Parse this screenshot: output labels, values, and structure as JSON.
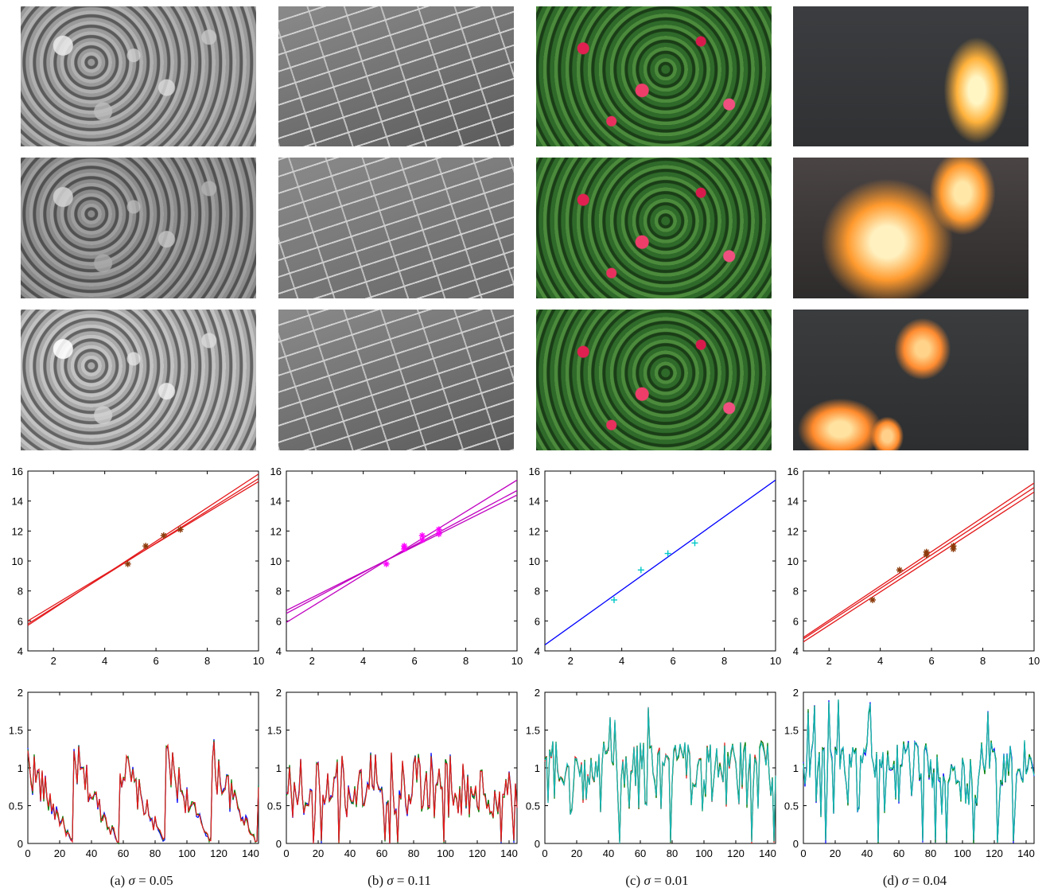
{
  "captions": [
    {
      "prefix": "(a) ",
      "sigma_symbol": "σ",
      "eq": " = 0.05"
    },
    {
      "prefix": "(b) ",
      "sigma_symbol": "σ",
      "eq": " = 0.11"
    },
    {
      "prefix": "(c) ",
      "sigma_symbol": "σ",
      "eq": " = 0.01"
    },
    {
      "prefix": "(d) ",
      "sigma_symbol": "σ",
      "eq": " = 0.04"
    }
  ],
  "colors": {
    "red": "#e31a1c",
    "magenta": "#ff00ff",
    "purple": "#c000c0",
    "blue": "#0000ff",
    "cyan": "#00c8c8",
    "brown": "#8b3a0a",
    "green": "#008000",
    "teal": "#18b4b4"
  },
  "chart_data": [
    {
      "type": "scatter",
      "panel": "a",
      "xlim": [
        1,
        10
      ],
      "ylim": [
        4,
        16
      ],
      "xticks": [
        2,
        4,
        6,
        8,
        10
      ],
      "yticks": [
        4,
        6,
        8,
        10,
        12,
        14,
        16
      ],
      "lines": [
        {
          "x": [
            1,
            10
          ],
          "y": [
            5.7,
            15.8
          ]
        },
        {
          "x": [
            1,
            10
          ],
          "y": [
            5.8,
            15.5
          ]
        },
        {
          "x": [
            1,
            10
          ],
          "y": [
            6.0,
            15.3
          ]
        }
      ],
      "line_color": "#e31a1c",
      "points": {
        "marker": "*",
        "color": "#8b3a0a",
        "x": [
          4.9,
          5.6,
          6.3,
          6.95
        ],
        "y": [
          9.8,
          11.0,
          11.7,
          12.1
        ]
      }
    },
    {
      "type": "scatter",
      "panel": "b",
      "xlim": [
        1,
        10
      ],
      "ylim": [
        4,
        16
      ],
      "xticks": [
        2,
        4,
        6,
        8,
        10
      ],
      "yticks": [
        4,
        6,
        8,
        10,
        12,
        14,
        16
      ],
      "lines": [
        {
          "x": [
            1,
            10
          ],
          "y": [
            5.9,
            15.4
          ]
        },
        {
          "x": [
            1,
            10
          ],
          "y": [
            6.5,
            14.7
          ]
        },
        {
          "x": [
            1,
            10
          ],
          "y": [
            6.7,
            14.4
          ]
        }
      ],
      "line_color": "#c000c0",
      "points": {
        "marker": "*",
        "color": "#ff00ff",
        "x": [
          4.9,
          5.6,
          5.6,
          6.3,
          6.3,
          6.95,
          6.95
        ],
        "y": [
          9.8,
          10.8,
          11.0,
          11.4,
          11.7,
          11.8,
          12.1
        ]
      }
    },
    {
      "type": "scatter",
      "panel": "c",
      "xlim": [
        1,
        10
      ],
      "ylim": [
        4,
        16
      ],
      "xticks": [
        2,
        4,
        6,
        8,
        10
      ],
      "yticks": [
        4,
        6,
        8,
        10,
        12,
        14,
        16
      ],
      "lines": [
        {
          "x": [
            1,
            10
          ],
          "y": [
            4.4,
            15.4
          ]
        }
      ],
      "line_color": "#0000ff",
      "points": {
        "marker": "+",
        "color": "#00c8c8",
        "x": [
          3.7,
          4.75,
          5.8,
          6.85
        ],
        "y": [
          7.4,
          9.4,
          10.5,
          11.2
        ]
      }
    },
    {
      "type": "scatter",
      "panel": "d",
      "xlim": [
        1,
        10
      ],
      "ylim": [
        4,
        16
      ],
      "xticks": [
        2,
        4,
        6,
        8,
        10
      ],
      "yticks": [
        4,
        6,
        8,
        10,
        12,
        14,
        16
      ],
      "lines": [
        {
          "x": [
            1,
            10
          ],
          "y": [
            4.6,
            14.6
          ]
        },
        {
          "x": [
            1,
            10
          ],
          "y": [
            4.8,
            14.9
          ]
        },
        {
          "x": [
            1,
            10
          ],
          "y": [
            4.9,
            15.2
          ]
        }
      ],
      "line_color": "#e31a1c",
      "points": {
        "marker": "*",
        "color": "#8b3a0a",
        "x": [
          3.7,
          4.75,
          5.8,
          5.8,
          6.85,
          6.85
        ],
        "y": [
          7.4,
          9.4,
          10.4,
          10.6,
          10.8,
          11.0
        ]
      }
    },
    {
      "type": "line",
      "panel": "a",
      "xlim": [
        0,
        145
      ],
      "ylim": [
        0,
        2
      ],
      "xticks": [
        0,
        20,
        40,
        60,
        80,
        100,
        120,
        140
      ],
      "yticks": [
        0,
        0.5,
        1,
        1.5,
        2
      ],
      "ytick_labels": [
        "0",
        "0.5",
        "1",
        "1.5",
        "2"
      ],
      "colors": [
        "#0000ff",
        "#008000",
        "#e31a1c"
      ],
      "profile": "sawtooth"
    },
    {
      "type": "line",
      "panel": "b",
      "xlim": [
        0,
        145
      ],
      "ylim": [
        0,
        2
      ],
      "xticks": [
        0,
        20,
        40,
        60,
        80,
        100,
        120,
        140
      ],
      "yticks": [
        0,
        0.5,
        1,
        1.5,
        2
      ],
      "ytick_labels": [
        "0",
        "0.5",
        "1",
        "1.5",
        "2"
      ],
      "colors": [
        "#0000ff",
        "#008000",
        "#e31a1c"
      ],
      "profile": "spiky-low"
    },
    {
      "type": "line",
      "panel": "c",
      "xlim": [
        0,
        145
      ],
      "ylim": [
        0,
        2
      ],
      "xticks": [
        0,
        20,
        40,
        60,
        80,
        100,
        120,
        140
      ],
      "yticks": [
        0,
        0.5,
        1,
        1.5,
        2
      ],
      "ytick_labels": [
        "0",
        "0.5",
        "1",
        "1.5",
        "2"
      ],
      "colors": [
        "#e31a1c",
        "#008000",
        "#18b4b4"
      ],
      "profile": "noisy-one"
    },
    {
      "type": "line",
      "panel": "d",
      "xlim": [
        0,
        145
      ],
      "ylim": [
        0,
        2
      ],
      "xticks": [
        0,
        20,
        40,
        60,
        80,
        100,
        120,
        140
      ],
      "yticks": [
        0,
        0.5,
        1,
        1.5,
        2
      ],
      "ytick_labels": [
        "0",
        "0.5",
        "1",
        "1.5",
        "2"
      ],
      "colors": [
        "#0000ff",
        "#008000",
        "#18b4b4"
      ],
      "profile": "noisy-one"
    }
  ]
}
